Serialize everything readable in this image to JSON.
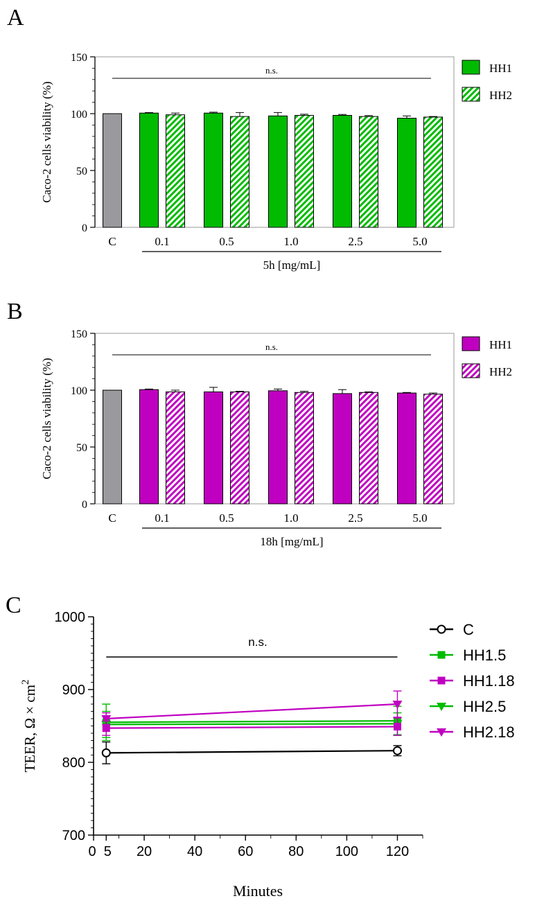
{
  "colors": {
    "control": "#9a9a9e",
    "green": "#00bb00",
    "magenta": "#c000c0",
    "black": "#000000"
  },
  "chart_data": [
    {
      "panel": "A",
      "type": "bar",
      "ylabel": "Caco-2 cells viability (%)",
      "xlabel": "5h [mg/mL]",
      "ylim": [
        0,
        150
      ],
      "yticks": [
        "0",
        "50",
        "100",
        "150"
      ],
      "control_label": "C",
      "control_value": 100,
      "categories": [
        "0.1",
        "0.5",
        "1.0",
        "2.5",
        "5.0"
      ],
      "series": [
        {
          "name": "HH1",
          "values": [
            100.5,
            100.5,
            98,
            98.5,
            96
          ],
          "errors": [
            0.5,
            0.8,
            3,
            0.8,
            2
          ]
        },
        {
          "name": "HH2",
          "values": [
            99,
            97.5,
            98.5,
            97.5,
            97
          ],
          "errors": [
            1.5,
            3.5,
            1,
            0.8,
            0.5
          ]
        }
      ],
      "annotation": "n.s.",
      "legend": "right",
      "color": "green"
    },
    {
      "panel": "B",
      "type": "bar",
      "ylabel": "Caco-2 cells viability (%)",
      "xlabel": "18h [mg/mL]",
      "ylim": [
        0,
        150
      ],
      "yticks": [
        "0",
        "50",
        "100",
        "150"
      ],
      "control_label": "C",
      "control_value": 100,
      "categories": [
        "0.1",
        "0.5",
        "1.0",
        "2.5",
        "5.0"
      ],
      "series": [
        {
          "name": "HH1",
          "values": [
            100.5,
            98.5,
            99.5,
            97,
            97.5
          ],
          "errors": [
            0.5,
            4,
            1.5,
            3.5,
            0.5
          ]
        },
        {
          "name": "HH2",
          "values": [
            98.5,
            98.5,
            98,
            98,
            96.5
          ],
          "errors": [
            1.5,
            0.5,
            1,
            0.5,
            1
          ]
        }
      ],
      "annotation": "n.s.",
      "legend": "right",
      "color": "magenta"
    },
    {
      "panel": "C",
      "type": "line",
      "ylabel": "TEER,  Ω × cm",
      "ylabel_sup": "2",
      "xlabel": "Minutes",
      "xlim": [
        0,
        130
      ],
      "ylim": [
        700,
        1000
      ],
      "xticks": [
        "0",
        "5",
        "20",
        "40",
        "60",
        "80",
        "100",
        "120"
      ],
      "yticks": [
        "700",
        "800",
        "900",
        "1000"
      ],
      "x": [
        5,
        120
      ],
      "series": [
        {
          "name": "C",
          "values": [
            813,
            816
          ],
          "errors": [
            15,
            7
          ],
          "marker": "circle-open",
          "color": "black"
        },
        {
          "name": "HH1.5",
          "values": [
            855,
            857
          ],
          "errors": [
            25,
            20
          ],
          "marker": "square",
          "color": "green"
        },
        {
          "name": "HH1.18",
          "values": [
            847,
            849
          ],
          "errors": [
            10,
            12
          ],
          "marker": "square",
          "color": "magenta"
        },
        {
          "name": "HH2.5",
          "values": [
            852,
            853
          ],
          "errors": [
            18,
            15
          ],
          "marker": "triangle-down",
          "color": "green"
        },
        {
          "name": "HH2.18",
          "values": [
            860,
            880
          ],
          "errors": [
            8,
            18
          ],
          "marker": "triangle-down",
          "color": "magenta"
        }
      ],
      "annotation": "n.s.",
      "legend": "right"
    }
  ]
}
